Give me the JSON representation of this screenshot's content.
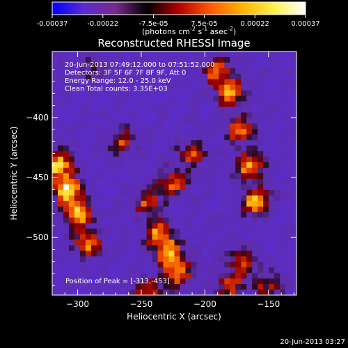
{
  "colorbar": {
    "ticks": [
      "-0.00037",
      "-0.00022",
      "-7.5e-05",
      "7.5e-05",
      "0.00022",
      "0.00037"
    ],
    "unit_main": "(photons cm",
    "unit_sup1": "-2",
    "unit_mid1": " s",
    "unit_sup2": "-1",
    "unit_mid2": " asec",
    "unit_sup3": "-2",
    "unit_end": ")",
    "stops": [
      "#0000ff",
      "#5a2bd0",
      "#7a2a8a",
      "#000000",
      "#b30000",
      "#ff5a00",
      "#ffb300",
      "#fff04a",
      "#ffffff"
    ]
  },
  "chart_data": {
    "type": "heatmap",
    "title": "Reconstructed RHESSI Image",
    "xlabel": "Heliocentric X (arcsec)",
    "ylabel": "Heliocentric Y (arcsec)",
    "xlim": [
      -320,
      -128
    ],
    "ylim": [
      -548,
      -345
    ],
    "xticks": [
      -300,
      -250,
      -200,
      -150
    ],
    "yticks": [
      -400,
      -450,
      -500
    ],
    "grid": false,
    "info_lines": [
      "20-Jun-2013 07:49:12.000 to 07:51:52.000",
      "Detectors: 3F 5F 6F 7F 8F 9F, Att 0",
      "Energy Range: 12.0 - 25.0 keV",
      "Clean    Total counts: 3.35E+03"
    ],
    "peak_label": "Position of Peak = [-313,-453]",
    "peak": [
      -313,
      -453
    ],
    "emission_blobs": [
      {
        "x": -308,
        "y": -460,
        "level": 1.0
      },
      {
        "x": -300,
        "y": -480,
        "level": 0.9
      },
      {
        "x": -315,
        "y": -440,
        "level": 0.85
      },
      {
        "x": -292,
        "y": -505,
        "level": 0.7
      },
      {
        "x": -228,
        "y": -512,
        "level": 0.8
      },
      {
        "x": -222,
        "y": -530,
        "level": 0.75
      },
      {
        "x": -238,
        "y": -495,
        "level": 0.65
      },
      {
        "x": -160,
        "y": -470,
        "level": 0.85
      },
      {
        "x": -165,
        "y": -440,
        "level": 0.8
      },
      {
        "x": -172,
        "y": -410,
        "level": 0.7
      },
      {
        "x": -180,
        "y": -380,
        "level": 0.7
      },
      {
        "x": -190,
        "y": -362,
        "level": 0.65
      },
      {
        "x": -225,
        "y": -455,
        "level": 0.6
      },
      {
        "x": -245,
        "y": -470,
        "level": 0.55
      },
      {
        "x": -210,
        "y": -430,
        "level": 0.55
      },
      {
        "x": -265,
        "y": -420,
        "level": 0.5
      },
      {
        "x": -170,
        "y": -520,
        "level": 0.6
      },
      {
        "x": -180,
        "y": -540,
        "level": 0.55
      },
      {
        "x": -150,
        "y": -540,
        "level": 0.45
      },
      {
        "x": -290,
        "y": -360,
        "level": 0.3
      },
      {
        "x": -245,
        "y": -545,
        "level": 0.55
      }
    ]
  },
  "timestamp": "20-Jun-2013 03:27"
}
